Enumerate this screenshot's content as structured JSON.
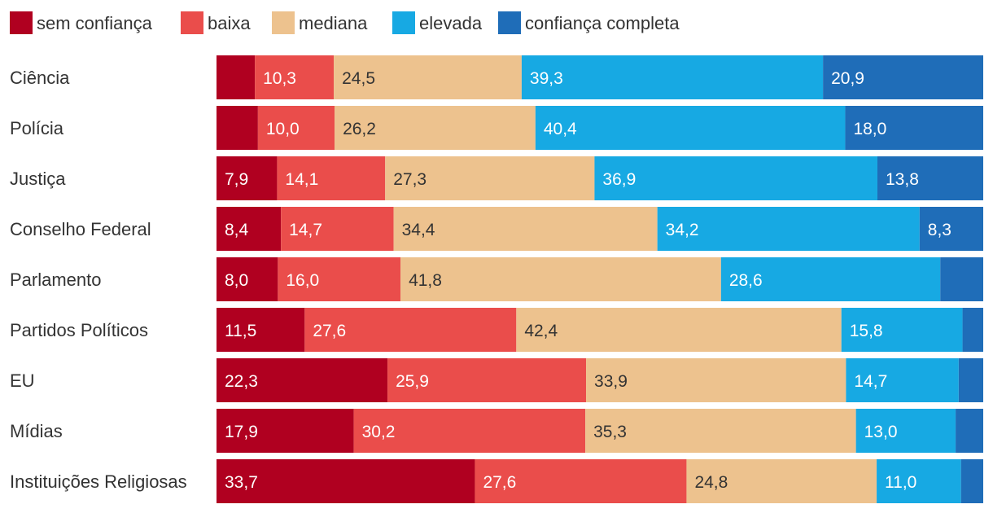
{
  "chart_data": {
    "type": "bar",
    "orientation": "horizontal",
    "stacked": true,
    "normalized": true,
    "title": "",
    "xlabel": "",
    "ylabel": "",
    "xlim": [
      0,
      100
    ],
    "grid": false,
    "legend": {
      "placement": "top-left"
    },
    "categories": [
      "Ciência",
      "Polícia",
      "Justiça",
      "Conselho Federal",
      "Parlamento",
      "Partidos Políticos",
      "EU",
      "Mídias",
      "Instituições Religiosas"
    ],
    "series": [
      {
        "name": "sem confiança",
        "color": "#b00020",
        "label_color": "#ffffff",
        "values": [
          5.0,
          5.4,
          7.9,
          8.4,
          8.0,
          11.5,
          22.3,
          17.9,
          33.7
        ],
        "labels": [
          "",
          "",
          "7,9",
          "8,4",
          "8,0",
          "11,5",
          "22,3",
          "17,9",
          "33,7"
        ]
      },
      {
        "name": "baixa",
        "color": "#ea4d4b",
        "label_color": "#ffffff",
        "values": [
          10.3,
          10.0,
          14.1,
          14.7,
          16.0,
          27.6,
          25.9,
          30.2,
          27.6
        ],
        "labels": [
          "10,3",
          "10,0",
          "14,1",
          "14,7",
          "16,0",
          "27,6",
          "25,9",
          "30,2",
          "27,6"
        ]
      },
      {
        "name": "mediana",
        "color": "#edc28e",
        "label_color": "#333333",
        "values": [
          24.5,
          26.2,
          27.3,
          34.4,
          41.8,
          42.4,
          33.9,
          35.3,
          24.8
        ],
        "labels": [
          "24,5",
          "26,2",
          "27,3",
          "34,4",
          "41,8",
          "42,4",
          "33,9",
          "35,3",
          "24,8"
        ]
      },
      {
        "name": "elevada",
        "color": "#17a9e3",
        "label_color": "#ffffff",
        "values": [
          39.3,
          40.4,
          36.9,
          34.2,
          28.6,
          15.8,
          14.7,
          13.0,
          11.0
        ],
        "labels": [
          "39,3",
          "40,4",
          "36,9",
          "34,2",
          "28,6",
          "15,8",
          "14,7",
          "13,0",
          "11,0"
        ]
      },
      {
        "name": "confiança completa",
        "color": "#1f6db8",
        "label_color": "#ffffff",
        "values": [
          20.9,
          18.0,
          13.8,
          8.3,
          5.6,
          2.7,
          3.2,
          3.6,
          2.9
        ],
        "labels": [
          "20,9",
          "18,0",
          "13,8",
          "8,3",
          "",
          "",
          "",
          "",
          ""
        ]
      }
    ]
  }
}
